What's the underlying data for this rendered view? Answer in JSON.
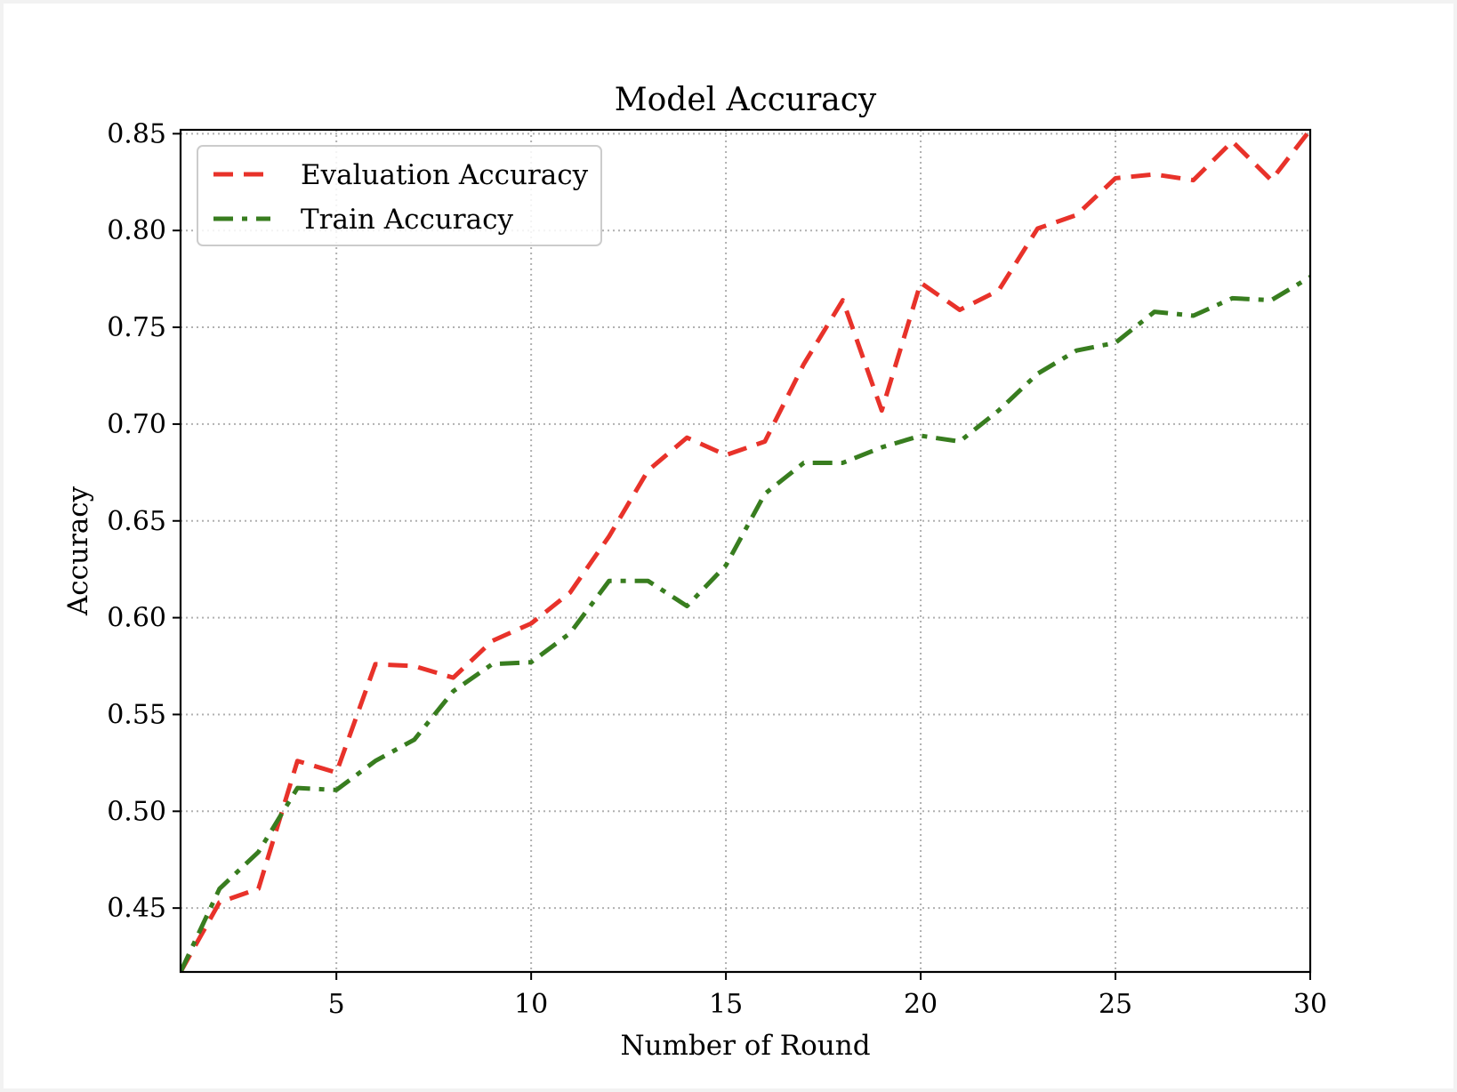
{
  "chart_data": {
    "type": "line",
    "title": "Model Accuracy",
    "xlabel": "Number of Round",
    "ylabel": "Accuracy",
    "xlim": [
      1,
      30
    ],
    "ylim": [
      0.417,
      0.852
    ],
    "x_ticks": [
      5,
      10,
      15,
      20,
      25,
      30
    ],
    "y_ticks": [
      0.45,
      0.5,
      0.55,
      0.6,
      0.65,
      0.7,
      0.75,
      0.8,
      0.85
    ],
    "x_tick_labels": [
      "5",
      "10",
      "15",
      "20",
      "25",
      "30"
    ],
    "y_tick_labels": [
      "0.45",
      "0.50",
      "0.55",
      "0.60",
      "0.65",
      "0.70",
      "0.75",
      "0.80",
      "0.85"
    ],
    "grid": true,
    "legend_position": "upper-left",
    "x": [
      1,
      2,
      3,
      4,
      5,
      6,
      7,
      8,
      9,
      10,
      11,
      12,
      13,
      14,
      15,
      16,
      17,
      18,
      19,
      20,
      21,
      22,
      23,
      24,
      25,
      26,
      27,
      28,
      29,
      30
    ],
    "series": [
      {
        "name": "Evaluation Accuracy",
        "color": "#e8322a",
        "style": "dashed",
        "values": [
          0.417,
          0.453,
          0.46,
          0.526,
          0.52,
          0.576,
          0.575,
          0.569,
          0.588,
          0.597,
          0.613,
          0.642,
          0.676,
          0.693,
          0.684,
          0.691,
          0.731,
          0.764,
          0.707,
          0.773,
          0.759,
          0.769,
          0.801,
          0.808,
          0.827,
          0.829,
          0.826,
          0.846,
          0.826,
          0.852
        ]
      },
      {
        "name": "Train Accuracy",
        "color": "#387d1f",
        "style": "dashdot",
        "values": [
          0.417,
          0.46,
          0.479,
          0.512,
          0.511,
          0.526,
          0.537,
          0.562,
          0.576,
          0.577,
          0.592,
          0.619,
          0.619,
          0.606,
          0.627,
          0.664,
          0.68,
          0.68,
          0.688,
          0.694,
          0.691,
          0.707,
          0.726,
          0.738,
          0.742,
          0.758,
          0.756,
          0.765,
          0.764,
          0.776
        ]
      }
    ]
  }
}
